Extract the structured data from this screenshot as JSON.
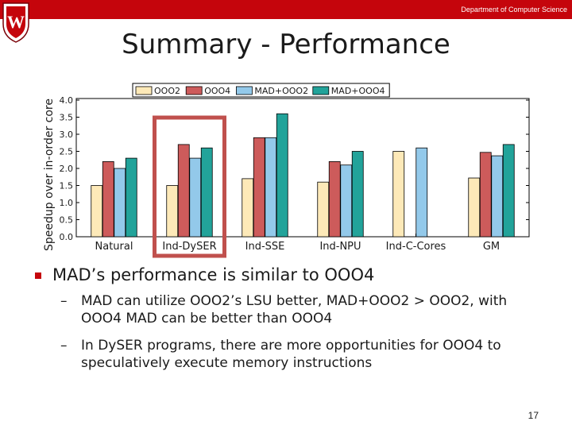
{
  "header": {
    "department": "Department of Computer Science",
    "logo_letter": "W",
    "accent_color": "#c5050c"
  },
  "slide": {
    "title": "Summary - Performance",
    "page_number": "17"
  },
  "bullets": {
    "main": "MAD’s performance is similar to OOO4",
    "sub": [
      "MAD can utilize OOO2’s LSU better, MAD+OOO2 > OOO2, with OOO4 MAD can be better than OOO4",
      "In DySER programs, there are more opportunities for OOO4 to speculatively execute memory instructions"
    ]
  },
  "chart_data": {
    "type": "bar",
    "title": "",
    "xlabel": "",
    "ylabel": "Speedup over in-order core",
    "ylim": [
      0,
      4.0
    ],
    "yticks": [
      "0.0",
      "0.5",
      "1.0",
      "1.5",
      "2.0",
      "2.5",
      "3.0",
      "3.5",
      "4.0"
    ],
    "categories": [
      "Natural",
      "Ind-DySER",
      "Ind-SSE",
      "Ind-NPU",
      "Ind-C-Cores",
      "GM"
    ],
    "legend_position": "top",
    "highlighted_category": "Ind-DySER",
    "highlight_color": "#c0504d",
    "series": [
      {
        "name": "OOO2",
        "color": "#fde9b8",
        "values": [
          1.5,
          1.5,
          1.7,
          1.6,
          2.5,
          1.72
        ]
      },
      {
        "name": "OOO4",
        "color": "#cd5b5b",
        "values": [
          2.2,
          2.7,
          2.9,
          2.2,
          null,
          2.47
        ]
      },
      {
        "name": "MAD+OOO2",
        "color": "#93c9ea",
        "values": [
          2.0,
          2.3,
          2.9,
          2.1,
          2.6,
          2.37
        ]
      },
      {
        "name": "MAD+OOO4",
        "color": "#22a39a",
        "values": [
          2.3,
          2.6,
          3.6,
          2.5,
          null,
          2.7
        ]
      }
    ]
  }
}
